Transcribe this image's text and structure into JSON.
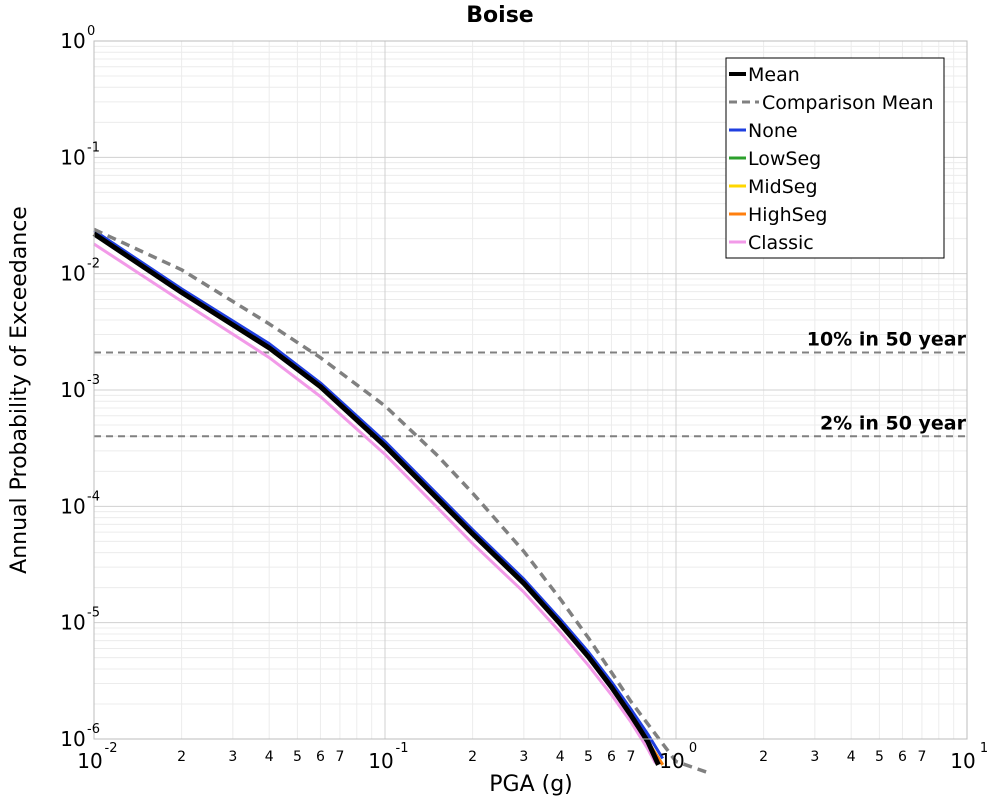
{
  "chart_data": {
    "type": "line",
    "title": "Boise",
    "xlabel": "PGA (g)",
    "ylabel": "Annual Probability of Exceedance",
    "xscale": "log",
    "yscale": "log",
    "xlim": [
      0.01,
      10
    ],
    "ylim": [
      1e-06,
      1
    ],
    "grid": true,
    "legend_position": "top-right",
    "x_decades": [
      {
        "base": "10",
        "exp": "-2"
      },
      {
        "base": "10",
        "exp": "-1"
      },
      {
        "base": "10",
        "exp": "0"
      },
      {
        "base": "10",
        "exp": "1"
      }
    ],
    "y_decades": [
      {
        "base": "10",
        "exp": "0"
      },
      {
        "base": "10",
        "exp": "-1"
      },
      {
        "base": "10",
        "exp": "-2"
      },
      {
        "base": "10",
        "exp": "-3"
      },
      {
        "base": "10",
        "exp": "-4"
      },
      {
        "base": "10",
        "exp": "-5"
      },
      {
        "base": "10",
        "exp": "-6"
      }
    ],
    "x_minor_labels": [
      "2",
      "3",
      "4",
      "5",
      "6",
      "7"
    ],
    "reference_lines": [
      {
        "label": "10% in 50 year",
        "y": 0.0021
      },
      {
        "label": "2% in 50 year",
        "y": 0.0004
      }
    ],
    "series": [
      {
        "name": "None",
        "color": "#1f3fe0",
        "style": "solid",
        "x": [
          0.01,
          0.02,
          0.04,
          0.06,
          0.1,
          0.2,
          0.3,
          0.4,
          0.5,
          0.6,
          0.7,
          0.8,
          0.9
        ],
        "y": [
          0.0235,
          0.0074,
          0.0025,
          0.00115,
          0.00036,
          6.3e-05,
          2.37e-05,
          1.07e-05,
          5.6e-06,
          3.1e-06,
          1.8e-06,
          1.1e-06,
          6.8e-07
        ]
      },
      {
        "name": "LowSeg",
        "color": "#2ca02c",
        "style": "solid",
        "x": [
          0.01,
          0.02,
          0.04,
          0.06,
          0.1,
          0.2,
          0.3,
          0.4,
          0.5,
          0.6,
          0.7,
          0.8,
          0.9
        ],
        "y": [
          0.022,
          0.0069,
          0.0023,
          0.00107,
          0.00033,
          5.8e-05,
          2.18e-05,
          9.8e-06,
          5.1e-06,
          2.8e-06,
          1.6e-06,
          9.5e-07,
          6e-07
        ]
      },
      {
        "name": "MidSeg",
        "color": "#ffd700",
        "style": "solid",
        "x": [
          0.01,
          0.02,
          0.04,
          0.06,
          0.1,
          0.2,
          0.3,
          0.4,
          0.5,
          0.6,
          0.7,
          0.8,
          0.9
        ],
        "y": [
          0.022,
          0.0069,
          0.0023,
          0.00107,
          0.00033,
          5.8e-05,
          2.18e-05,
          9.8e-06,
          5.1e-06,
          2.8e-06,
          1.6e-06,
          9.5e-07,
          6e-07
        ]
      },
      {
        "name": "HighSeg",
        "color": "#ff7f0e",
        "style": "solid",
        "x": [
          0.01,
          0.02,
          0.04,
          0.06,
          0.1,
          0.2,
          0.3,
          0.4,
          0.5,
          0.6,
          0.7,
          0.8,
          0.9
        ],
        "y": [
          0.022,
          0.0069,
          0.0023,
          0.00107,
          0.00033,
          5.8e-05,
          2.18e-05,
          9.8e-06,
          5.1e-06,
          2.8e-06,
          1.6e-06,
          9.5e-07,
          6e-07
        ]
      },
      {
        "name": "Classic",
        "color": "#f29ae8",
        "style": "solid",
        "x": [
          0.01,
          0.02,
          0.04,
          0.06,
          0.1,
          0.2,
          0.3,
          0.4,
          0.5,
          0.6,
          0.7,
          0.8,
          0.85
        ],
        "y": [
          0.018,
          0.0058,
          0.0019,
          0.00088,
          0.00028,
          4.8e-05,
          1.83e-05,
          8.3e-06,
          4.3e-06,
          2.4e-06,
          1.4e-06,
          8.2e-07,
          6.2e-07
        ]
      },
      {
        "name": "Comparison Mean",
        "color": "#808080",
        "style": "dashed",
        "x": [
          0.01,
          0.02,
          0.04,
          0.06,
          0.1,
          0.15,
          0.2,
          0.3,
          0.4,
          0.5,
          0.7,
          1.0,
          1.3
        ],
        "y": [
          0.024,
          0.0108,
          0.0037,
          0.0019,
          0.00073,
          0.00028,
          0.00013,
          4.1e-05,
          1.6e-05,
          7.4e-06,
          2.1e-06,
          6.4e-07,
          5.1e-07
        ]
      },
      {
        "name": "Mean",
        "color": "#000000",
        "style": "solid",
        "x": [
          0.01,
          0.02,
          0.04,
          0.06,
          0.1,
          0.2,
          0.3,
          0.4,
          0.5,
          0.6,
          0.7,
          0.8,
          0.87
        ],
        "y": [
          0.022,
          0.0069,
          0.0023,
          0.00107,
          0.00033,
          5.8e-05,
          2.18e-05,
          9.8e-06,
          5.1e-06,
          2.8e-06,
          1.6e-06,
          9.5e-07,
          6e-07
        ]
      }
    ],
    "legend_order": [
      "Mean",
      "Comparison Mean",
      "None",
      "LowSeg",
      "MidSeg",
      "HighSeg",
      "Classic"
    ]
  }
}
